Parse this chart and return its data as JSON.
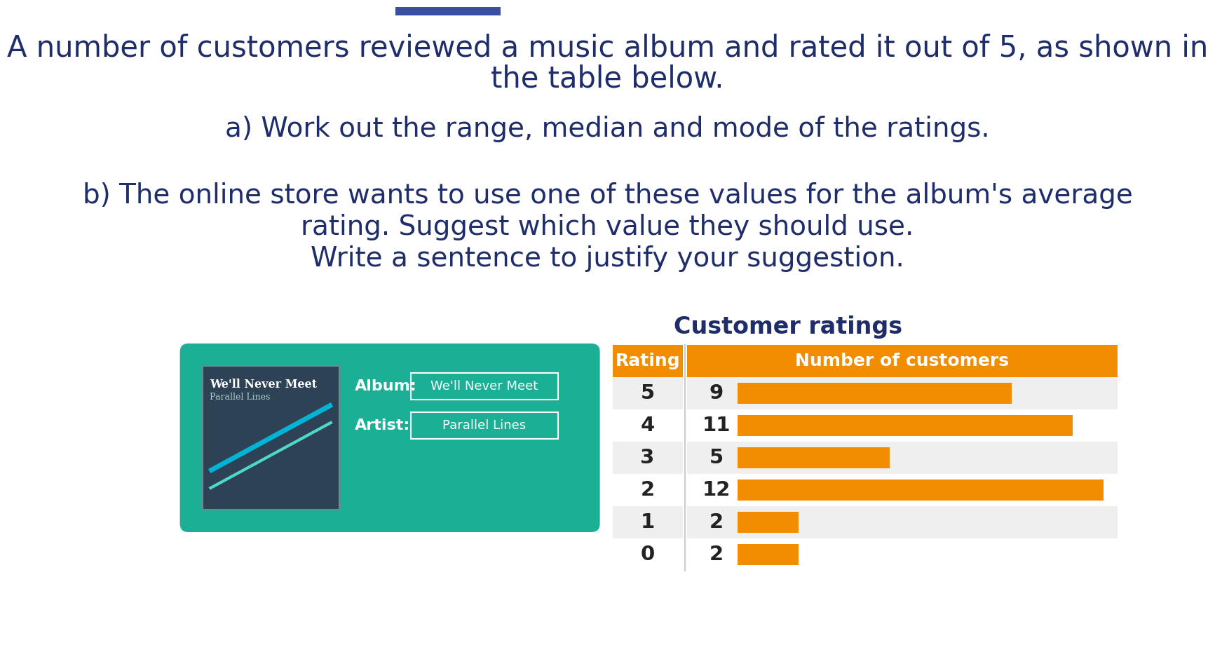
{
  "title_text1": "A number of customers reviewed a music album and rated it out of 5, as shown in",
  "title_text2": "the table below.",
  "question_a": "a) Work out the range, median and mode of the ratings.",
  "question_b1": "b) The online store wants to use one of these values for the album's average",
  "question_b2": "rating. Suggest which value they should use.",
  "question_b3": "Write a sentence to justify your suggestion.",
  "table_title": "Customer ratings",
  "col1_header": "Rating",
  "col2_header": "Number of customers",
  "ratings": [
    5,
    4,
    3,
    2,
    1,
    0
  ],
  "counts": [
    9,
    11,
    5,
    12,
    2,
    2
  ],
  "max_count": 12,
  "bar_color": "#F28C00",
  "header_bg_color": "#F28C00",
  "header_text_color": "#ffffff",
  "row_bg_even": "#F0EFEF",
  "row_bg_odd": "#FFFFFF",
  "album_panel_bg": "#1BAF96",
  "album_cover_bg": "#2D4355",
  "album_title_on_cover": "We'll Never Meet",
  "album_artist_on_cover": "Parallel Lines",
  "album_title_label": "Album:",
  "artist_label": "Artist:",
  "album_title_value": "We'll Never Meet",
  "artist_value": "Parallel Lines",
  "line_color1": "#00B4D8",
  "line_color2": "#4ED8C8",
  "title_font_color": "#1F2D6B",
  "bg_color": "#ffffff",
  "nav_bar_color": "#3A4FA0"
}
